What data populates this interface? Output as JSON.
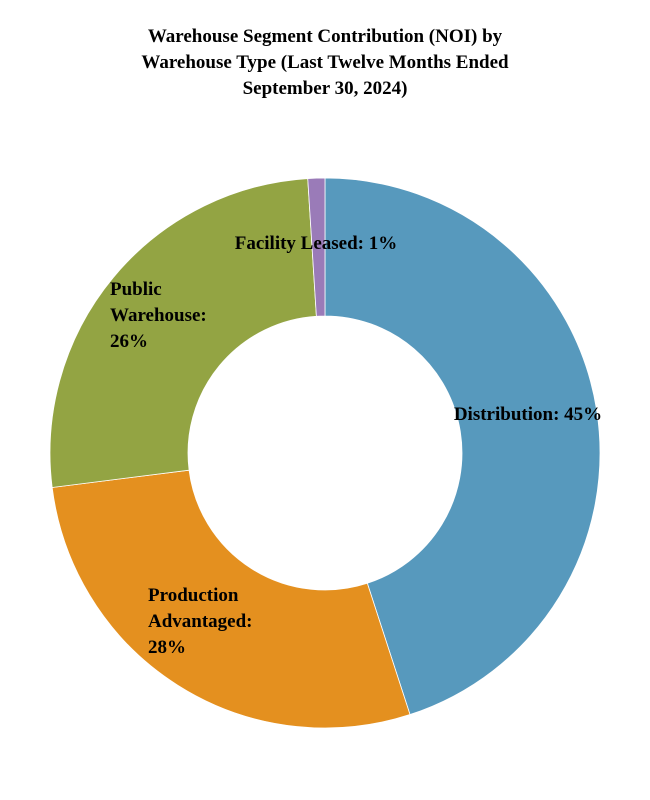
{
  "chart_data": {
    "type": "pie",
    "variant": "donut",
    "title_lines": [
      "Warehouse Segment Contribution (NOI) by",
      "Warehouse Type (Last Twelve Months Ended",
      "September 30, 2024)"
    ],
    "slices": [
      {
        "name": "Distribution",
        "value": 45,
        "color": "#5799bd",
        "label_lines": [
          "Distribution: 45%"
        ]
      },
      {
        "name": "Production Advantaged",
        "value": 28,
        "color": "#e4901f",
        "label_lines": [
          "Production",
          "Advantaged:",
          "28%"
        ]
      },
      {
        "name": "Public Warehouse",
        "value": 26,
        "color": "#93a443",
        "label_lines": [
          "Public",
          "Warehouse:",
          "26%"
        ]
      },
      {
        "name": "Facility Leased",
        "value": 1,
        "color": "#9a7bb8",
        "label_lines": [
          "Facility Leased: 1%"
        ]
      }
    ],
    "legend": "none"
  }
}
